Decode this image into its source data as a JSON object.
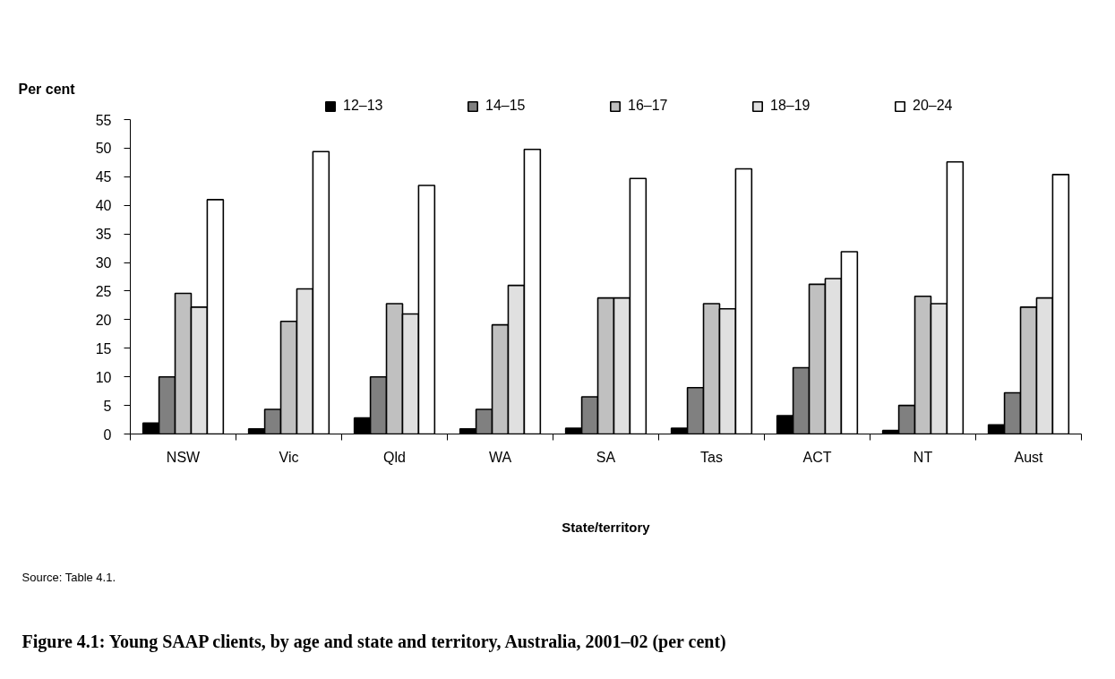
{
  "chart_data": {
    "type": "bar",
    "title": "Figure 4.1: Young SAAP clients, by age and state and territory, Australia, 2001–02 (per cent)",
    "xlabel": "State/territory",
    "ylabel": "Per cent",
    "annotations": [
      "Source: Table 4.1."
    ],
    "categories": [
      "NSW",
      "Vic",
      "Qld",
      "WA",
      "SA",
      "Tas",
      "ACT",
      "NT",
      "Aust"
    ],
    "series": [
      {
        "name": "12–13",
        "color": "#000000",
        "values": [
          1.9,
          0.9,
          2.8,
          0.9,
          1.0,
          1.0,
          3.2,
          0.6,
          1.6
        ]
      },
      {
        "name": "14–15",
        "color": "#808080",
        "values": [
          10.0,
          4.3,
          10.0,
          4.3,
          6.5,
          8.1,
          11.6,
          5.0,
          7.2
        ]
      },
      {
        "name": "16–17",
        "color": "#c0c0c0",
        "values": [
          24.6,
          19.7,
          22.8,
          19.1,
          23.8,
          22.8,
          26.2,
          24.1,
          22.2
        ]
      },
      {
        "name": "18–19",
        "color": "#e0e0e0",
        "values": [
          22.2,
          25.4,
          21.0,
          26.0,
          23.8,
          21.9,
          27.2,
          22.8,
          23.8
        ]
      },
      {
        "name": "20–24",
        "color": "#ffffff",
        "values": [
          41.0,
          49.4,
          43.5,
          49.8,
          44.7,
          46.4,
          31.9,
          47.6,
          45.4
        ]
      }
    ],
    "ylim": [
      0,
      55
    ],
    "yticks": [
      0,
      5,
      10,
      15,
      20,
      25,
      30,
      35,
      40,
      45,
      50,
      55
    ],
    "grid": false,
    "legend": "top"
  }
}
